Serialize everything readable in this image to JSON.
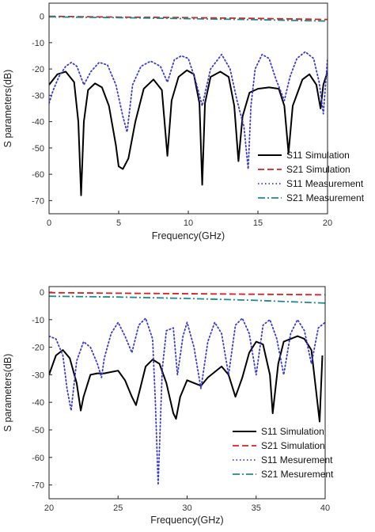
{
  "chart_data": [
    {
      "type": "line",
      "xlabel": "Frequency(GHz)",
      "ylabel": "S parameters(dB)",
      "xlim": [
        0,
        20
      ],
      "ylim": [
        -75,
        5
      ],
      "xticks": [
        "0",
        "5",
        "10",
        "15",
        "20"
      ],
      "yticks": [
        "0",
        "-10",
        "-20",
        "-30",
        "-40",
        "-50",
        "-60",
        "-70"
      ],
      "legend_position": "bottom-right",
      "series": [
        {
          "name": "S11 Simulation",
          "color": "#000000",
          "style": "solid",
          "x": [
            0.0,
            0.6,
            1.2,
            1.8,
            2.1,
            2.3,
            2.5,
            2.8,
            3.3,
            3.8,
            4.3,
            4.8,
            5.0,
            5.3,
            5.7,
            6.2,
            6.8,
            7.5,
            8.1,
            8.5,
            8.8,
            9.3,
            9.9,
            10.4,
            10.8,
            11.0,
            11.2,
            11.6,
            12.3,
            12.9,
            13.3,
            13.6,
            13.9,
            14.4,
            15.0,
            15.8,
            16.5,
            16.9,
            17.2,
            17.5,
            18.2,
            18.7,
            19.2,
            19.5,
            19.7,
            20.0
          ],
          "y": [
            -26,
            -22,
            -21,
            -25,
            -40,
            -68,
            -40,
            -28,
            -25.5,
            -27,
            -34,
            -49,
            -57,
            -58,
            -54,
            -40,
            -27.5,
            -24,
            -28,
            -53,
            -32,
            -23,
            -20.5,
            -22,
            -33,
            -64,
            -33,
            -23,
            -21,
            -23,
            -34,
            -55,
            -38,
            -29,
            -27.5,
            -27,
            -27.5,
            -34,
            -52,
            -34,
            -24,
            -22,
            -26,
            -35,
            -26,
            -21
          ]
        },
        {
          "name": "S21 Simulation",
          "color": "#d62020",
          "style": "dashed",
          "x": [
            0,
            5,
            10,
            15,
            20
          ],
          "y": [
            0,
            -0.3,
            -0.5,
            -0.8,
            -1.2
          ]
        },
        {
          "name": "S11 Measurement",
          "color": "#3a3ad0",
          "style": "dotted",
          "x": [
            0.0,
            0.3,
            0.7,
            1.2,
            1.6,
            2.0,
            2.5,
            3.0,
            3.6,
            4.2,
            4.8,
            5.3,
            5.6,
            6.0,
            6.6,
            7.3,
            8.0,
            8.5,
            9.0,
            9.5,
            10.0,
            10.5,
            11.0,
            11.6,
            12.4,
            13.0,
            13.5,
            14.0,
            14.3,
            14.5,
            14.8,
            15.3,
            15.8,
            16.3,
            16.9,
            17.3,
            17.8,
            18.4,
            19.0,
            19.4,
            19.7,
            20.0
          ],
          "y": [
            -33,
            -28,
            -23,
            -19,
            -17.5,
            -19,
            -26,
            -21,
            -17.5,
            -18.5,
            -26,
            -38,
            -44,
            -26,
            -19,
            -17,
            -19,
            -25,
            -16.5,
            -15,
            -16,
            -24,
            -34,
            -20,
            -14.5,
            -20,
            -32,
            -42,
            -58,
            -34,
            -20,
            -14.5,
            -16,
            -24,
            -32,
            -23,
            -16,
            -13.5,
            -16,
            -25,
            -37,
            -16
          ]
        },
        {
          "name": "S21 Measurement",
          "color": "#1f8a8a",
          "style": "dashdot",
          "x": [
            0,
            5,
            10,
            15,
            20
          ],
          "y": [
            -0.2,
            -0.5,
            -0.9,
            -1.3,
            -1.8
          ]
        }
      ]
    },
    {
      "type": "line",
      "xlabel": "Frequency(GHz)",
      "ylabel": "S parameters(dB)",
      "xlim": [
        20,
        40
      ],
      "ylim": [
        -75,
        2
      ],
      "xticks": [
        "20",
        "25",
        "30",
        "35",
        "40"
      ],
      "yticks": [
        "0",
        "-10",
        "-20",
        "-30",
        "-40",
        "-50",
        "-60",
        "-70"
      ],
      "legend_position": "bottom-right",
      "series": [
        {
          "name": "S11 Simulation",
          "color": "#000000",
          "style": "solid",
          "x": [
            20.0,
            20.5,
            21.0,
            21.5,
            22.0,
            22.3,
            22.5,
            23.0,
            23.5,
            24.0,
            24.5,
            25.0,
            25.5,
            26.0,
            26.3,
            26.6,
            27.0,
            27.5,
            28.0,
            28.5,
            29.0,
            29.2,
            29.5,
            30.0,
            30.5,
            31.0,
            31.5,
            32.0,
            32.5,
            33.0,
            33.5,
            34.0,
            34.5,
            35.0,
            35.5,
            36.0,
            36.2,
            36.6,
            37.0,
            37.5,
            38.0,
            38.5,
            39.0,
            39.3,
            39.6,
            39.8
          ],
          "y": [
            -30,
            -23,
            -21,
            -24,
            -33,
            -43,
            -38,
            -30,
            -29.5,
            -29.5,
            -29,
            -28.5,
            -32,
            -38,
            -41,
            -35,
            -27,
            -24.5,
            -26,
            -33,
            -44,
            -46,
            -38,
            -32,
            -33,
            -34,
            -31,
            -29,
            -27,
            -30,
            -38,
            -31,
            -22,
            -18,
            -19,
            -30,
            -44,
            -26,
            -18,
            -17,
            -16,
            -17,
            -21,
            -34,
            -47,
            -23
          ]
        },
        {
          "name": "S21 Simulation",
          "color": "#d62020",
          "style": "dashed",
          "x": [
            20,
            25,
            30,
            35,
            40
          ],
          "y": [
            -0.2,
            -0.4,
            -0.6,
            -0.8,
            -1.0
          ]
        },
        {
          "name": "S11 Mesurement",
          "color": "#3a3ad0",
          "style": "dotted",
          "x": [
            20.0,
            20.5,
            21.0,
            21.3,
            21.6,
            22.0,
            22.5,
            23.0,
            23.5,
            23.8,
            24.0,
            24.5,
            25.0,
            25.5,
            26.0,
            26.5,
            27.0,
            27.5,
            27.7,
            27.9,
            28.2,
            28.5,
            29.0,
            29.3,
            29.7,
            30.0,
            30.5,
            31.0,
            31.5,
            32.0,
            32.5,
            33.0,
            33.5,
            34.0,
            34.5,
            35.0,
            35.5,
            36.0,
            36.5,
            37.0,
            37.5,
            38.0,
            38.5,
            39.0,
            39.5,
            40.0
          ],
          "y": [
            -16,
            -17,
            -23,
            -35,
            -43,
            -25,
            -18,
            -20,
            -26,
            -31,
            -24,
            -15,
            -11,
            -16,
            -22,
            -12,
            -9.5,
            -17,
            -40,
            -70,
            -28,
            -14,
            -13,
            -30,
            -16,
            -11,
            -20,
            -35,
            -18,
            -11,
            -15,
            -30,
            -12,
            -9.5,
            -15,
            -30,
            -12,
            -10,
            -17,
            -30,
            -15,
            -10,
            -14,
            -26,
            -13,
            -11
          ]
        },
        {
          "name": "S21 Mesurement",
          "color": "#1f8a8a",
          "style": "dashdot",
          "x": [
            20,
            25,
            30,
            35,
            40
          ],
          "y": [
            -1.5,
            -1.8,
            -2.3,
            -3.0,
            -4.0
          ]
        }
      ]
    }
  ]
}
